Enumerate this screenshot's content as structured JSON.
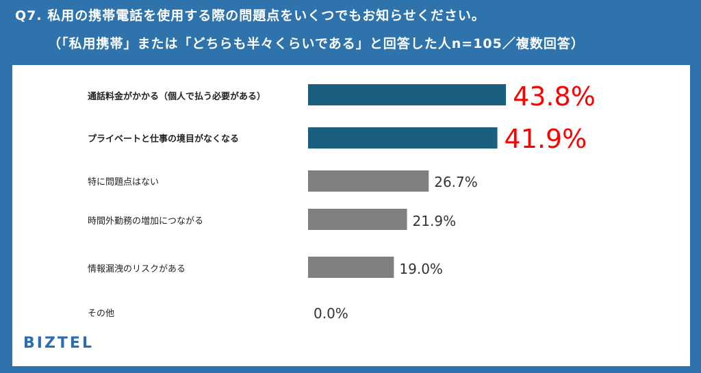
{
  "title": "Q7. 私用の携帯電話を使用する際の問題点をいくつでもお知らせください。",
  "subtitle": "（「私用携帯」または「どちらも半々くらいである」と回答した人n=105／複数回答）",
  "brand": "BIZTEL",
  "colors": {
    "background": "#2f73ad",
    "highlight_bar": "#1a5f80",
    "normal_bar": "#7f7f7f",
    "highlight_value": "#ff0000",
    "normal_value": "#333333"
  },
  "chart_data": {
    "type": "bar",
    "orientation": "horizontal",
    "categories": [
      "通話料金がかかる（個人で払う必要がある）",
      "プライベートと仕事の境目がなくなる",
      "特に問題点はない",
      "時間外勤務の増加につながる",
      "情報漏洩のリスクがある",
      "その他"
    ],
    "values": [
      43.8,
      41.9,
      26.7,
      21.9,
      19.0,
      0.0
    ],
    "value_labels": [
      "43.8%",
      "41.9%",
      "26.7%",
      "21.9%",
      "19.0%",
      "0.0%"
    ],
    "highlighted": [
      true,
      true,
      false,
      false,
      false,
      false
    ],
    "unit": "%"
  }
}
